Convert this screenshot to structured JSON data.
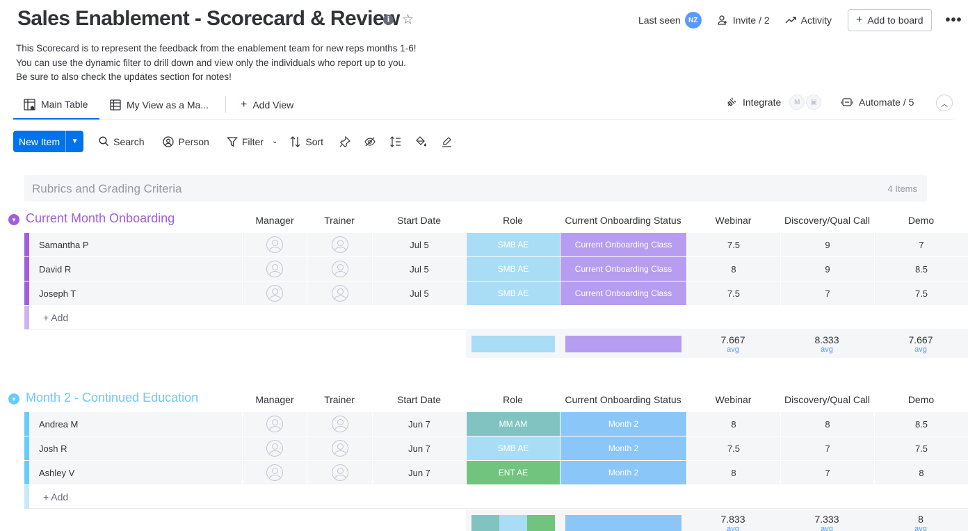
{
  "board": {
    "title": "Sales Enablement - Scorecard & Review",
    "description": [
      "This Scorecard is to represent the feedback from the enablement team for new reps months 1-6!",
      "You can use the dynamic filter to drill down and view only the individuals who report up to you.",
      "Be sure to also check the updates section for notes!"
    ]
  },
  "top_bar": {
    "last_seen_label": "Last seen",
    "avatar_initials": "NZ",
    "invite_label": "Invite / 2",
    "activity_label": "Activity",
    "add_to_board_label": "Add to board"
  },
  "views": {
    "tabs": [
      {
        "label": "Main Table",
        "active": true
      },
      {
        "label": "My View as a Ma...",
        "active": false
      }
    ],
    "add_view_label": "Add View",
    "integrate_label": "Integrate",
    "automate_label": "Automate / 5"
  },
  "toolbar": {
    "new_item_label": "New Item",
    "search_label": "Search",
    "person_label": "Person",
    "filter_label": "Filter",
    "sort_label": "Sort"
  },
  "collapsed_group": {
    "title": "Rubrics and Grading Criteria",
    "count": "4 Items"
  },
  "columns": {
    "manager": "Manager",
    "trainer": "Trainer",
    "start_date": "Start Date",
    "role": "Role",
    "status": "Current Onboarding Status",
    "webinar": "Webinar",
    "discovery": "Discovery/Qual Call",
    "demo": "Demo"
  },
  "colors": {
    "group1": "#a25ddc",
    "group2": "#66ccff",
    "smb_ae": "#a9dcf5",
    "mm_am": "#81c3c0",
    "ent_ae": "#71c47e",
    "current_class": "#b69df0",
    "month2": "#8ac6f7"
  },
  "groups": [
    {
      "title": "Current Month Onboarding",
      "add_label": "+ Add",
      "rows": [
        {
          "name": "Samantha P",
          "start": "Jul 5",
          "role": "SMB AE",
          "status": "Current Onboarding Class",
          "webinar": "7.5",
          "discovery": "9",
          "demo": "7"
        },
        {
          "name": "David R",
          "start": "Jul 5",
          "role": "SMB AE",
          "status": "Current Onboarding Class",
          "webinar": "8",
          "discovery": "9",
          "demo": "8.5"
        },
        {
          "name": "Joseph T",
          "start": "Jul 5",
          "role": "SMB AE",
          "status": "Current Onboarding Class",
          "webinar": "7.5",
          "discovery": "7",
          "demo": "7.5"
        }
      ],
      "summary": {
        "webinar": "7.667",
        "discovery": "8.333",
        "demo": "7.667",
        "label": "avg"
      }
    },
    {
      "title": "Month 2 - Continued Education",
      "add_label": "+ Add",
      "rows": [
        {
          "name": "Andrea M",
          "start": "Jun 7",
          "role": "MM AM",
          "status": "Month 2",
          "webinar": "8",
          "discovery": "8",
          "demo": "8.5"
        },
        {
          "name": "Josh R",
          "start": "Jun 7",
          "role": "SMB AE",
          "status": "Month 2",
          "webinar": "7.5",
          "discovery": "7",
          "demo": "7.5"
        },
        {
          "name": "Ashley V",
          "start": "Jun 7",
          "role": "ENT AE",
          "status": "Month 2",
          "webinar": "8",
          "discovery": "7",
          "demo": "8"
        }
      ],
      "summary": {
        "webinar": "7.833",
        "discovery": "7.333",
        "demo": "8",
        "label": "avg"
      }
    }
  ]
}
